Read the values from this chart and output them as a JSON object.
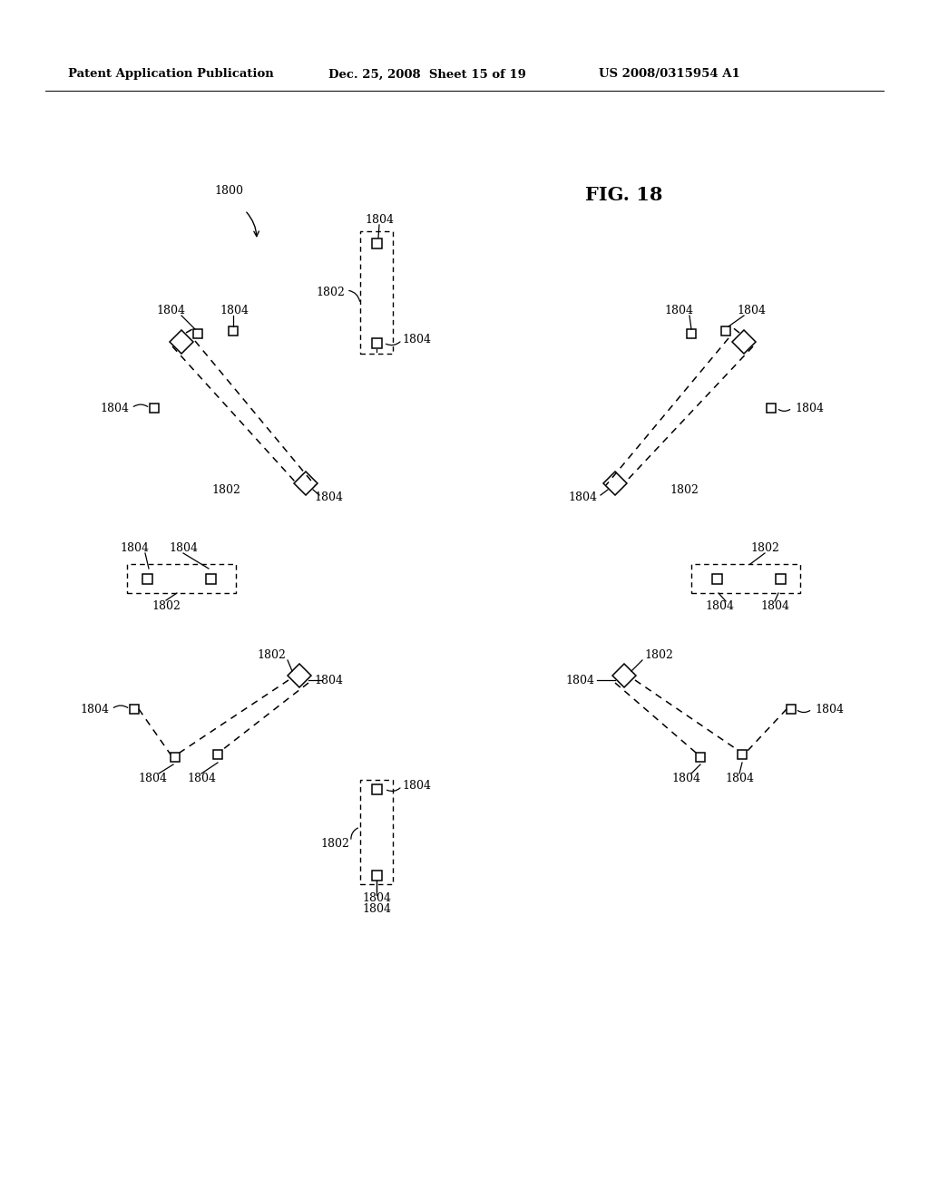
{
  "header_left": "Patent Application Publication",
  "header_mid": "Dec. 25, 2008  Sheet 15 of 19",
  "header_right": "US 2008/0315954 A1",
  "fig_label": "FIG. 18",
  "bg_color": "#ffffff",
  "line_color": "#000000",
  "text_color": "#000000",
  "fontsize_header": 9.5,
  "fontsize_ref": 9.0,
  "fontsize_fig": 15
}
